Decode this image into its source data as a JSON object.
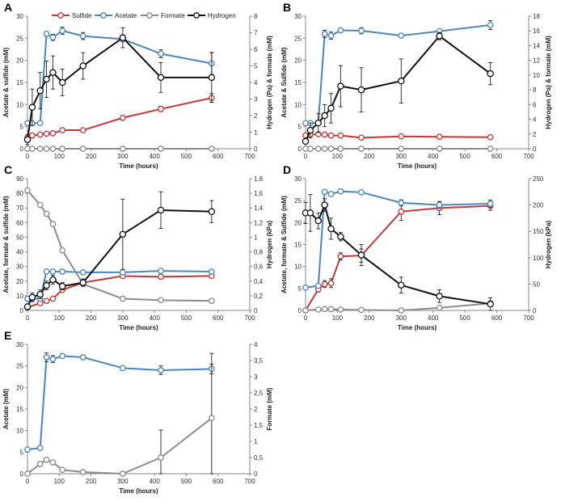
{
  "figure": {
    "legend": {
      "sulfide": "Sulfide",
      "acetate": "Acetate",
      "formate": "Formate",
      "hydrogen": "Hydrogen"
    },
    "colors": {
      "sulfide": "#c0393b",
      "acetate": "#4e86bb",
      "formate": "#8c8c8c",
      "hydrogen": "#111111"
    }
  },
  "chart_data": [
    {
      "panel": "A",
      "type": "line",
      "xlabel": "Time (hours)",
      "ylabel": "Acetate & sulfide (mM)",
      "y2label": "Hydrogen (Pa)  & formate (mM)",
      "xlim": [
        0,
        700
      ],
      "xticks": [
        "0",
        "100",
        "200",
        "300",
        "400",
        "500",
        "600",
        "700"
      ],
      "ylim": [
        0,
        30
      ],
      "yticks": [
        "0",
        "5",
        "10",
        "15",
        "20",
        "25",
        "30"
      ],
      "y2lim": [
        0,
        8
      ],
      "y2ticks": [
        "0",
        "1",
        "2",
        "3",
        "4",
        "5",
        "6",
        "7",
        "8"
      ],
      "series": [
        {
          "name": "Sulfide",
          "axis": "left",
          "color": "#c0393b",
          "x": [
            0,
            15,
            40,
            60,
            80,
            110,
            175,
            300,
            420,
            580
          ],
          "y": [
            2.5,
            3,
            3.2,
            3.4,
            3.5,
            4.2,
            4.2,
            7,
            9,
            11.5
          ],
          "err": [
            0.3,
            0.3,
            0.3,
            0.3,
            0.3,
            0.4,
            0.4,
            0.5,
            0.6,
            1
          ]
        },
        {
          "name": "Acetate",
          "axis": "left",
          "color": "#4e86bb",
          "x": [
            0,
            15,
            40,
            60,
            80,
            110,
            175,
            300,
            420,
            580
          ],
          "y": [
            5.8,
            5.8,
            5.8,
            26,
            25.2,
            26.7,
            25.5,
            24.8,
            21.5,
            19.3
          ],
          "err": [
            0.3,
            0.3,
            0.3,
            0.5,
            0.7,
            0.8,
            0.8,
            0.6,
            0.9,
            2.5
          ]
        },
        {
          "name": "Formate",
          "axis": "right",
          "color": "#8c8c8c",
          "x": [
            0,
            15,
            40,
            60,
            80,
            110,
            175,
            300,
            420,
            580
          ],
          "y": [
            0,
            0,
            0,
            0,
            0,
            0,
            0,
            0,
            0,
            0
          ],
          "err": [
            0,
            0,
            0,
            0,
            0,
            0,
            0,
            0,
            0,
            0
          ]
        },
        {
          "name": "Hydrogen",
          "axis": "right",
          "color": "#111111",
          "x": [
            0,
            15,
            40,
            60,
            80,
            110,
            175,
            300,
            420,
            580
          ],
          "y": [
            0.55,
            2.5,
            3.5,
            4.2,
            4.6,
            4,
            5,
            6.7,
            4.3,
            4.3
          ],
          "err": [
            0.3,
            1.1,
            1.1,
            1.1,
            1,
            0.8,
            0.8,
            0.6,
            0.9,
            1.5
          ]
        }
      ]
    },
    {
      "panel": "B",
      "type": "line",
      "xlabel": "Time (hours)",
      "ylabel": "Acetate & Sulfide (mM)",
      "y2label": "Hydrogen (Pa)  & formate (mM)",
      "xlim": [
        0,
        700
      ],
      "xticks": [
        "0",
        "100",
        "200",
        "300",
        "400",
        "500",
        "600",
        "700"
      ],
      "ylim": [
        0,
        30
      ],
      "yticks": [
        "0",
        "5",
        "10",
        "15",
        "20",
        "25",
        "30"
      ],
      "y2lim": [
        0,
        18
      ],
      "y2ticks": [
        "0",
        "2",
        "4",
        "6",
        "8",
        "10",
        "12",
        "14",
        "16",
        "18"
      ],
      "series": [
        {
          "name": "Sulfide",
          "axis": "left",
          "color": "#c0393b",
          "x": [
            0,
            15,
            40,
            60,
            80,
            110,
            175,
            300,
            420,
            580
          ],
          "y": [
            3,
            3.2,
            3.3,
            3.2,
            3,
            3,
            2.5,
            2.8,
            2.7,
            2.6
          ],
          "err": [
            0.3,
            0.3,
            0.3,
            0.3,
            0.3,
            0.3,
            0.3,
            0.3,
            0.3,
            0.3
          ]
        },
        {
          "name": "Acetate",
          "axis": "left",
          "color": "#4e86bb",
          "x": [
            0,
            15,
            40,
            60,
            80,
            110,
            175,
            300,
            420,
            580
          ],
          "y": [
            5.8,
            5.8,
            5.8,
            26,
            25.6,
            26.8,
            26.7,
            25.6,
            26.6,
            28
          ],
          "err": [
            0.3,
            0.3,
            0.3,
            0.8,
            0.8,
            0.4,
            0.7,
            0.5,
            0.4,
            1
          ]
        },
        {
          "name": "Formate",
          "axis": "right",
          "color": "#8c8c8c",
          "x": [
            0,
            15,
            40,
            60,
            80,
            110,
            175,
            300,
            420,
            580
          ],
          "y": [
            0,
            0,
            0,
            0,
            0,
            0,
            0,
            0,
            0,
            0
          ],
          "err": [
            0,
            0,
            0,
            0,
            0,
            0,
            0,
            0,
            0,
            0
          ]
        },
        {
          "name": "Hydrogen",
          "axis": "right",
          "color": "#111111",
          "x": [
            0,
            15,
            40,
            60,
            80,
            110,
            175,
            300,
            420,
            580
          ],
          "y": [
            1,
            2.5,
            3.5,
            4.5,
            5.5,
            8.5,
            8,
            9.2,
            15.3,
            10.2
          ],
          "err": [
            0.3,
            1,
            1.3,
            1.5,
            2,
            2.8,
            3,
            3,
            0.5,
            1.5
          ]
        }
      ]
    },
    {
      "panel": "C",
      "type": "line",
      "xlabel": "Time (hours)",
      "ylabel": "Acetate, formate & sulfide (mM)",
      "y2label": "Hydrogen (kPa)",
      "xlim": [
        0,
        700
      ],
      "xticks": [
        "0",
        "100",
        "200",
        "300",
        "400",
        "500",
        "600",
        "700"
      ],
      "ylim": [
        0,
        90
      ],
      "yticks": [
        "0",
        "10",
        "20",
        "30",
        "40",
        "50",
        "60",
        "70",
        "80",
        "90"
      ],
      "y2lim": [
        0,
        1.8
      ],
      "y2ticks": [
        "0",
        "0,2",
        "0,4",
        "0,6",
        "0,8",
        "1",
        "1,2",
        "1,4",
        "1,6",
        "1,8"
      ],
      "series": [
        {
          "name": "Sulfide",
          "axis": "left",
          "color": "#c0393b",
          "x": [
            0,
            40,
            60,
            80,
            110,
            175,
            300,
            420,
            580
          ],
          "y": [
            2,
            5,
            6.5,
            8,
            14,
            19,
            23.5,
            23,
            23.5
          ],
          "err": [
            0.5,
            0.8,
            0.8,
            1,
            1,
            1,
            1,
            1,
            1
          ]
        },
        {
          "name": "Acetate",
          "axis": "left",
          "color": "#4e86bb",
          "x": [
            0,
            15,
            40,
            60,
            80,
            110,
            175,
            300,
            420,
            580
          ],
          "y": [
            8,
            8,
            8,
            26.5,
            26.5,
            26.5,
            26,
            26,
            27,
            26.5
          ],
          "err": [
            0.5,
            0.5,
            0.5,
            0.7,
            0.7,
            0.7,
            0.7,
            0.7,
            0.7,
            1
          ]
        },
        {
          "name": "Formate",
          "axis": "left",
          "color": "#8c8c8c",
          "x": [
            0,
            40,
            60,
            80,
            110,
            175,
            300,
            420,
            580
          ],
          "y": [
            82,
            72,
            66,
            59,
            41,
            18,
            8,
            7,
            6.5
          ],
          "err": [
            1,
            1,
            1,
            1,
            1,
            1,
            1,
            1,
            1.5
          ]
        },
        {
          "name": "Hydrogen",
          "axis": "right",
          "color": "#111111",
          "x": [
            0,
            15,
            40,
            60,
            80,
            110,
            175,
            300,
            420,
            580
          ],
          "y": [
            0.05,
            0.18,
            0.22,
            0.34,
            0.42,
            0.33,
            0.38,
            1.04,
            1.37,
            1.35
          ],
          "err": [
            0.03,
            0.06,
            0.06,
            0.06,
            0.06,
            0.05,
            0.05,
            0.48,
            0.25,
            0.15
          ]
        }
      ]
    },
    {
      "panel": "D",
      "type": "line",
      "xlabel": "Time (hours)",
      "ylabel": "Acetate, formate & Sulfide (mM)",
      "y2label": "Hydrogen (kPa)",
      "xlim": [
        0,
        700
      ],
      "xticks": [
        "0",
        "100",
        "200",
        "300",
        "400",
        "500",
        "600",
        "700"
      ],
      "ylim": [
        0,
        30
      ],
      "yticks": [
        "0",
        "5",
        "10",
        "15",
        "20",
        "25",
        "30"
      ],
      "y2lim": [
        0,
        250
      ],
      "y2ticks": [
        "0",
        "50",
        "100",
        "150",
        "200",
        "250"
      ],
      "series": [
        {
          "name": "Sulfide",
          "axis": "left",
          "color": "#c0393b",
          "x": [
            0,
            40,
            60,
            80,
            110,
            175,
            300,
            420,
            580
          ],
          "y": [
            0,
            4.8,
            6,
            6.2,
            12.3,
            12.5,
            22.5,
            23.3,
            23.8
          ],
          "err": [
            0.2,
            0.6,
            0.8,
            1,
            0.8,
            1.5,
            2,
            1.5,
            1
          ]
        },
        {
          "name": "Acetate",
          "axis": "left",
          "color": "#4e86bb",
          "x": [
            0,
            40,
            60,
            80,
            110,
            175,
            300,
            420,
            580
          ],
          "y": [
            5.2,
            5.6,
            27,
            26.5,
            27.1,
            26.9,
            24.5,
            24,
            24.3
          ],
          "err": [
            0.3,
            0.3,
            0.5,
            0.5,
            0.4,
            0.4,
            0.7,
            0.8,
            0.8
          ]
        },
        {
          "name": "Formate",
          "axis": "left",
          "color": "#8c8c8c",
          "x": [
            0,
            40,
            60,
            80,
            110,
            175,
            300,
            420,
            580
          ],
          "y": [
            0,
            0.2,
            0.3,
            0.3,
            0.2,
            0.1,
            0,
            0.6,
            1.6
          ],
          "err": [
            0,
            0.1,
            0.1,
            0.1,
            0.1,
            0.1,
            0,
            0.3,
            0.5
          ]
        },
        {
          "name": "Hydrogen",
          "axis": "right",
          "color": "#111111",
          "x": [
            0,
            15,
            40,
            60,
            80,
            110,
            175,
            300,
            420,
            580
          ],
          "y": [
            185,
            185,
            170,
            200,
            155,
            140,
            105,
            48,
            27,
            12
          ],
          "err": [
            20,
            35,
            15,
            12,
            20,
            8,
            20,
            15,
            12,
            12
          ]
        }
      ]
    },
    {
      "panel": "E",
      "type": "line",
      "xlabel": "Time (hours)",
      "ylabel": "Acetate (mM)",
      "y2label": "Formate (mM)",
      "xlim": [
        0,
        700
      ],
      "xticks": [
        "0",
        "100",
        "200",
        "300",
        "400",
        "500",
        "600",
        "700"
      ],
      "ylim": [
        0,
        30
      ],
      "yticks": [
        "0",
        "5",
        "10",
        "15",
        "20",
        "25",
        "30"
      ],
      "y2lim": [
        0,
        4
      ],
      "y2ticks": [
        "0",
        "0,5",
        "1",
        "1,5",
        "2",
        "2,5",
        "3",
        "3,5",
        "4"
      ],
      "series": [
        {
          "name": "Acetate",
          "axis": "left",
          "color": "#4e86bb",
          "x": [
            0,
            40,
            60,
            80,
            110,
            175,
            300,
            420,
            580
          ],
          "y": [
            5.6,
            6,
            27,
            26.6,
            27.3,
            27,
            24.5,
            24,
            24.3
          ],
          "err": [
            0.3,
            0.3,
            1,
            0.8,
            0.4,
            0.4,
            0.5,
            1,
            1.1
          ]
        },
        {
          "name": "Formate",
          "axis": "right",
          "color": "#8c8c8c",
          "x": [
            0,
            40,
            60,
            80,
            110,
            175,
            300,
            420,
            580
          ],
          "y": [
            0,
            0.3,
            0.43,
            0.35,
            0.12,
            0.05,
            0,
            0.5,
            1.72
          ],
          "err": [
            0,
            0,
            0,
            0,
            0,
            0,
            0,
            0.85,
            2
          ]
        }
      ]
    }
  ],
  "panels_layout_note": "A B / C D / E"
}
